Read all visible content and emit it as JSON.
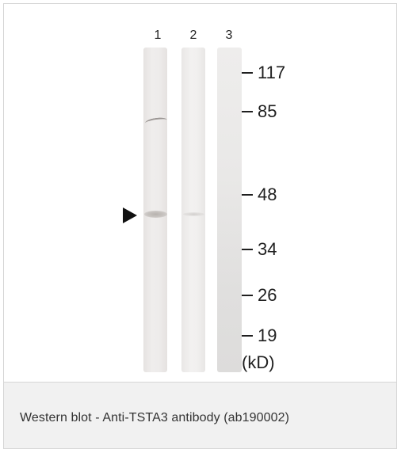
{
  "figure": {
    "lanes": [
      {
        "number": "1"
      },
      {
        "number": "2"
      },
      {
        "number": "3"
      }
    ],
    "markers": [
      {
        "label": "117"
      },
      {
        "label": "85"
      },
      {
        "label": "48"
      },
      {
        "label": "34"
      },
      {
        "label": "26"
      },
      {
        "label": "19"
      }
    ],
    "unit": "(kD)",
    "band_pointer": "arrow-right-icon"
  },
  "caption": {
    "text": "Western blot - Anti-TSTA3 antibody (ab190002)"
  },
  "colors": {
    "border": "#d6d6d6",
    "caption_bg": "#f1f1f1",
    "text": "#333333"
  }
}
